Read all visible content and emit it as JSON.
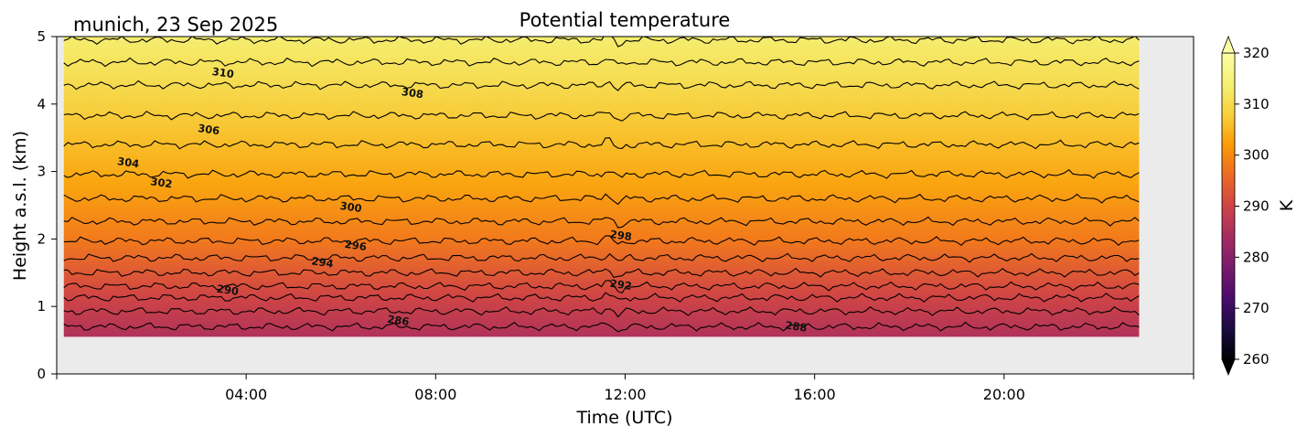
{
  "chart_data": {
    "type": "contour",
    "title": "Potential temperature",
    "subtitle": "munich, 23 Sep 2025",
    "xlabel": "Time (UTC)",
    "ylabel": "Height a.s.l. (km)",
    "x_range_hours": [
      0,
      24
    ],
    "x_ticks": [
      {
        "hour": 4,
        "label": "04:00"
      },
      {
        "hour": 8,
        "label": "08:00"
      },
      {
        "hour": 12,
        "label": "12:00"
      },
      {
        "hour": 16,
        "label": "16:00"
      },
      {
        "hour": 20,
        "label": "20:00"
      }
    ],
    "x_minor_ticks_hours": [
      0,
      24
    ],
    "ylim": [
      0,
      5
    ],
    "y_ticks": [
      {
        "value": 0,
        "label": "0"
      },
      {
        "value": 1,
        "label": "1"
      },
      {
        "value": 2,
        "label": "2"
      },
      {
        "value": 3,
        "label": "3"
      },
      {
        "value": 4,
        "label": "4"
      },
      {
        "value": 5,
        "label": "5"
      }
    ],
    "data_extent": {
      "time_start_hours": 0.15,
      "time_end_hours": 22.85,
      "height_min_km": 0.55,
      "height_max_km": 5
    },
    "background_color": "#ebebeb",
    "contour_levels": [
      {
        "value": 286,
        "height_km": 0.7
      },
      {
        "value": 288,
        "height_km": 0.93
      },
      {
        "value": 290,
        "height_km": 1.13
      },
      {
        "value": 292,
        "height_km": 1.3
      },
      {
        "value": 294,
        "height_km": 1.5
      },
      {
        "value": 296,
        "height_km": 1.72
      },
      {
        "value": 298,
        "height_km": 1.97
      },
      {
        "value": 300,
        "height_km": 2.26
      },
      {
        "value": 302,
        "height_km": 2.6
      },
      {
        "value": 304,
        "height_km": 2.96
      },
      {
        "value": 306,
        "height_km": 3.4
      },
      {
        "value": 308,
        "height_km": 3.83
      },
      {
        "value": 310,
        "height_km": 4.28
      },
      {
        "value": 312,
        "height_km": 4.62
      },
      {
        "value": 314,
        "height_km": 4.95
      }
    ],
    "contour_labels": [
      {
        "text": "286",
        "hour": 7.2,
        "height_km": 0.74
      },
      {
        "text": "288",
        "hour": 15.6,
        "height_km": 0.65
      },
      {
        "text": "290",
        "hour": 3.6,
        "height_km": 1.19
      },
      {
        "text": "292",
        "hour": 11.9,
        "height_km": 1.27
      },
      {
        "text": "294",
        "hour": 5.6,
        "height_km": 1.6
      },
      {
        "text": "296",
        "hour": 6.3,
        "height_km": 1.85
      },
      {
        "text": "298",
        "hour": 11.9,
        "height_km": 2.0
      },
      {
        "text": "300",
        "hour": 6.2,
        "height_km": 2.42
      },
      {
        "text": "302",
        "hour": 2.2,
        "height_km": 2.78
      },
      {
        "text": "304",
        "hour": 1.5,
        "height_km": 3.08
      },
      {
        "text": "306",
        "hour": 3.2,
        "height_km": 3.57
      },
      {
        "text": "308",
        "hour": 7.5,
        "height_km": 4.11
      },
      {
        "text": "310",
        "hour": 3.5,
        "height_km": 4.41
      }
    ],
    "colorbar": {
      "label": "K",
      "range": [
        260,
        320
      ],
      "ticks": [
        {
          "value": 260,
          "label": "260"
        },
        {
          "value": 270,
          "label": "270"
        },
        {
          "value": 280,
          "label": "280"
        },
        {
          "value": 290,
          "label": "290"
        },
        {
          "value": 300,
          "label": "300"
        },
        {
          "value": 310,
          "label": "310"
        },
        {
          "value": 320,
          "label": "320"
        }
      ],
      "extend": "both",
      "colormap": "inferno"
    },
    "color_stops": [
      {
        "value": 260,
        "color": "#000004"
      },
      {
        "value": 266,
        "color": "#1b0c41"
      },
      {
        "value": 272,
        "color": "#4a0c6b"
      },
      {
        "value": 278,
        "color": "#781c6d"
      },
      {
        "value": 284,
        "color": "#a52c60"
      },
      {
        "value": 290,
        "color": "#cf4446"
      },
      {
        "value": 296,
        "color": "#ed6925"
      },
      {
        "value": 302,
        "color": "#fb9b06"
      },
      {
        "value": 308,
        "color": "#f7d13d"
      },
      {
        "value": 314,
        "color": "#f5f074"
      },
      {
        "value": 320,
        "color": "#fcffa4"
      }
    ],
    "field_stops": [
      {
        "height_km": 0.55,
        "value": 285.5
      },
      {
        "height_km": 1.2,
        "value": 290.5
      },
      {
        "height_km": 2.0,
        "value": 298.0
      },
      {
        "height_km": 2.8,
        "value": 303.0
      },
      {
        "height_km": 3.6,
        "value": 306.5
      },
      {
        "height_km": 4.4,
        "value": 310.5
      },
      {
        "height_km": 5.0,
        "value": 313.5
      }
    ]
  }
}
